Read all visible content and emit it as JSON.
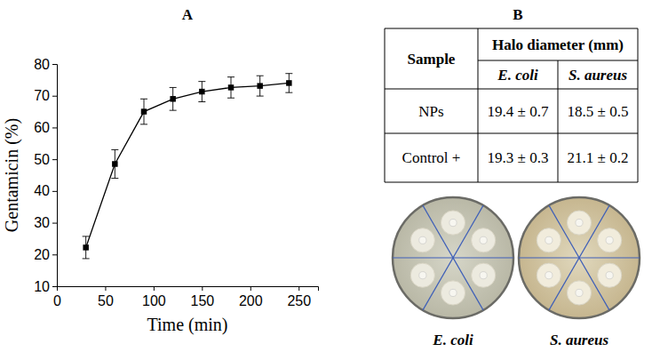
{
  "chart_data": {
    "type": "line",
    "title": "A",
    "x": [
      30,
      60,
      90,
      120,
      150,
      180,
      210,
      240
    ],
    "values": [
      22.2,
      48.5,
      65.0,
      69.0,
      71.3,
      72.6,
      73.1,
      74.0
    ],
    "errors": [
      3.5,
      4.5,
      4.0,
      3.6,
      3.2,
      3.3,
      3.2,
      3.0
    ],
    "x_label": "Time (min)",
    "y_label": "Gentamicin (%)",
    "xlim": [
      0,
      270
    ],
    "xticks": [
      0,
      50,
      100,
      150,
      200,
      250
    ],
    "ylim": [
      10,
      80
    ],
    "yticks": [
      10,
      20,
      30,
      40,
      50,
      60,
      70,
      80
    ],
    "color": "#000000",
    "marker": "square",
    "line_style": "solid",
    "grid": false
  },
  "table": {
    "title": "B",
    "header": [
      "Sample",
      "Halo diameter (mm)"
    ],
    "subheader": [
      "E. coli",
      "S. aureus"
    ],
    "rows": [
      [
        "NPs",
        "19.4 ± 0.7",
        "18.5 ± 0.5"
      ],
      [
        "Control +",
        "19.3 ± 0.3",
        "21.1 ± 0.2"
      ]
    ]
  },
  "dishes": {
    "labels": [
      "E. coli",
      "S. aureus"
    ]
  }
}
